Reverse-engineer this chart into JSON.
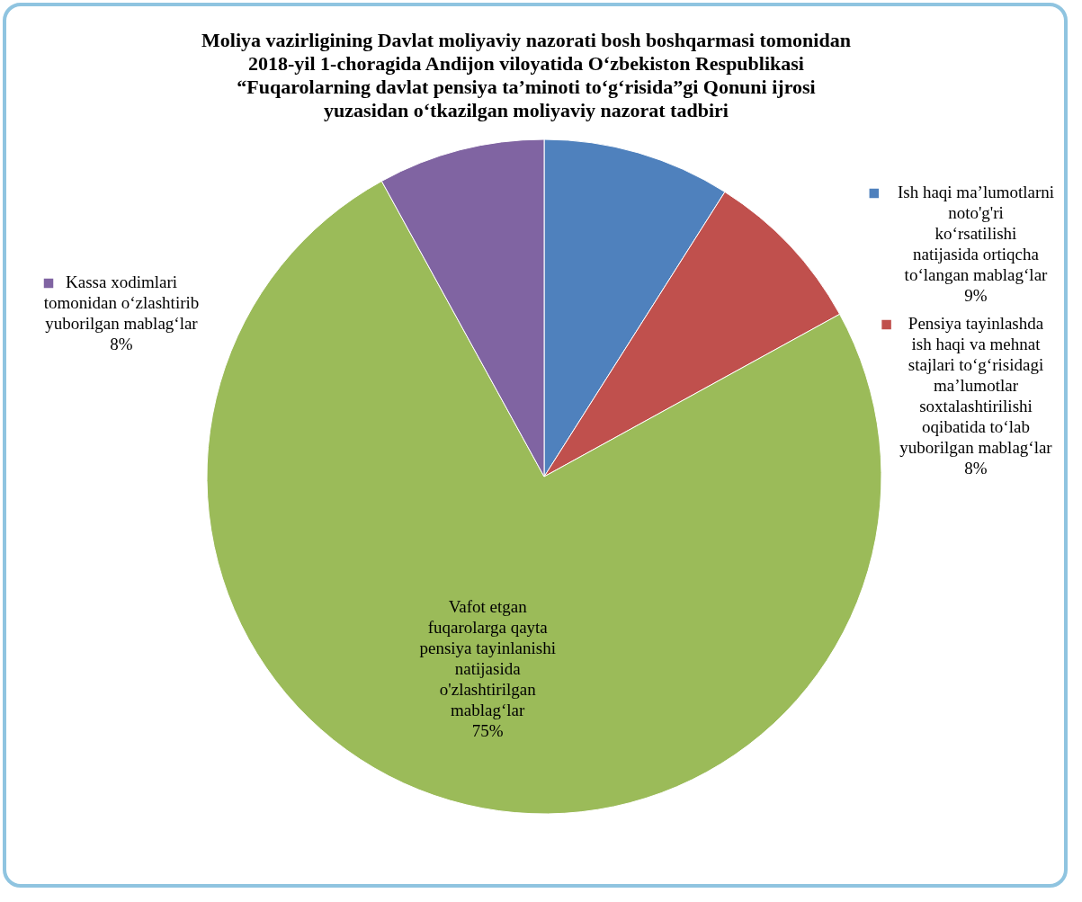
{
  "chart_data": {
    "type": "pie",
    "title": "Moliya vazirligining Davlat moliyaviy nazorati bosh boshqarmasi tomonidan\n2018-yil 1-choragida Andijon viloyatida O‘zbekiston Respublikasi\n“Fuqarolarning davlat pensiya ta’minoti to‘g‘risida”gi Qonuni ijrosi\nyuzasidan o‘tkazilgan moliyaviy nazorat tadbiri",
    "categories": [
      "Ish haqi ma’lumotlarni noto'g'ri ko‘rsatilishi natijasida ortiqcha to‘langan mablag‘lar",
      "Pensiya tayinlashda ish haqi va mehnat stajlari to‘g‘risidagi ma’lumotlar soxtalashtirilishi oqibatida to‘lab yuborilgan mablag‘lar",
      "Vafot etgan fuqarolarga qayta pensiya tayinlanishi natijasida o'zlashtirilgan mablag‘lar",
      "Kassa xodimlari tomonidan o‘zlashtirib yuborilgan mablag‘lar"
    ],
    "values": [
      9,
      8,
      75,
      8
    ],
    "value_labels": [
      "9%",
      "8%",
      "75%",
      "8%"
    ],
    "colors": [
      "#4f81bd",
      "#c0504d",
      "#9bbb59",
      "#8064a2"
    ],
    "legend": "right"
  }
}
